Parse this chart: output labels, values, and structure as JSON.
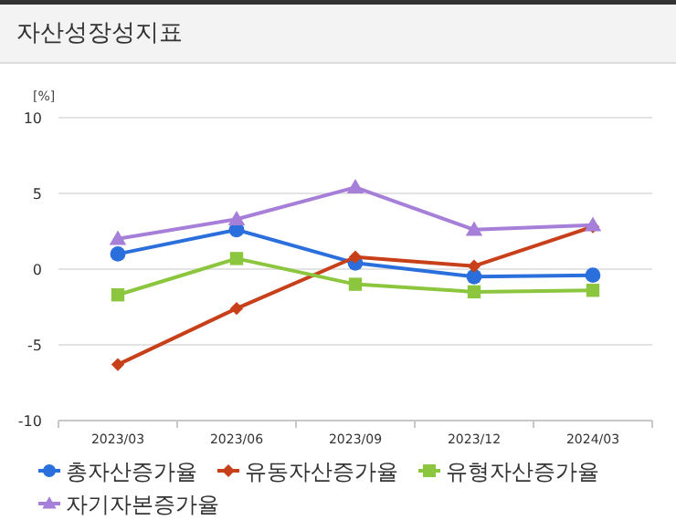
{
  "chart_data": {
    "type": "line",
    "title": "자산성장성지표",
    "ylabel": "[%]",
    "categories": [
      "2023/03",
      "2023/06",
      "2023/09",
      "2023/12",
      "2024/03"
    ],
    "series": [
      {
        "name": "총자산증가율",
        "color": "#2a6fdb",
        "marker": "circle",
        "values": [
          1.0,
          2.6,
          0.4,
          -0.5,
          -0.4
        ]
      },
      {
        "name": "유동자산증가율",
        "color": "#c8401a",
        "marker": "diamond",
        "values": [
          -6.3,
          -2.6,
          0.8,
          0.2,
          2.8
        ]
      },
      {
        "name": "유형자산증가율",
        "color": "#8cc63f",
        "marker": "square",
        "values": [
          -1.7,
          0.7,
          -1.0,
          -1.5,
          -1.4
        ]
      },
      {
        "name": "자기자본증가율",
        "color": "#a67fd8",
        "marker": "triangle",
        "values": [
          2.0,
          3.3,
          5.4,
          2.6,
          2.9
        ]
      }
    ],
    "ylim": [
      -10,
      10
    ],
    "yticks": [
      -10,
      -5,
      0,
      5,
      10
    ],
    "grid": "y",
    "legend": "bottom"
  }
}
